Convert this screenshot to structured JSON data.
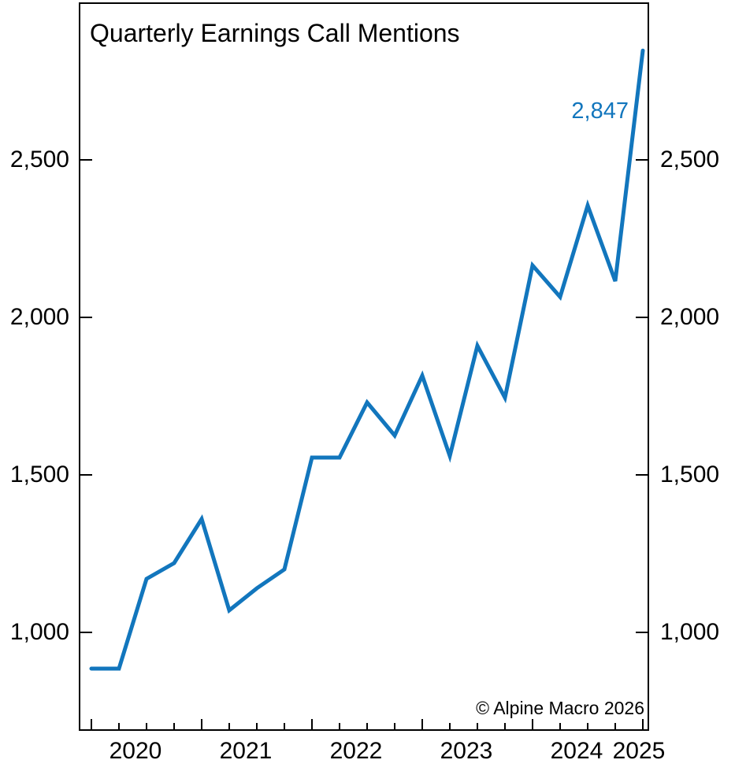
{
  "copyright": "© Alpine Macro 2026",
  "colors": {
    "line": "#1276bd",
    "annotation": "#1276bd",
    "axis": "#000000",
    "background": "#ffffff",
    "text": "#000000"
  },
  "chart_data": {
    "type": "line",
    "title": "Quarterly Earnings Call Mentions",
    "x": [
      "2020 Q1",
      "2020 Q2",
      "2020 Q3",
      "2020 Q4",
      "2021 Q1",
      "2021 Q2",
      "2021 Q3",
      "2021 Q4",
      "2022 Q1",
      "2022 Q2",
      "2022 Q3",
      "2022 Q4",
      "2023 Q1",
      "2023 Q2",
      "2023 Q3",
      "2023 Q4",
      "2024 Q1",
      "2024 Q2",
      "2024 Q3",
      "2024 Q4",
      "2025 Q1"
    ],
    "values": [
      885,
      885,
      1170,
      1220,
      1360,
      1070,
      1140,
      1200,
      1555,
      1555,
      1730,
      1625,
      1815,
      1560,
      1910,
      1745,
      2165,
      2065,
      2355,
      2115,
      2847
    ],
    "last_point_label": "2,847",
    "x_axis": {
      "year_labels": [
        "2020",
        "2021",
        "2022",
        "2023",
        "2024",
        "2025"
      ],
      "minor_ticks": "quarterly",
      "major_ticks": "yearly"
    },
    "y_axis": {
      "ticks": [
        1000,
        1500,
        2000,
        2500
      ],
      "tick_labels": [
        "1,000",
        "1,500",
        "2,000",
        "2,500"
      ],
      "sides": "both",
      "ylim": [
        700,
        3000
      ]
    },
    "grid": false,
    "legend": "none"
  }
}
